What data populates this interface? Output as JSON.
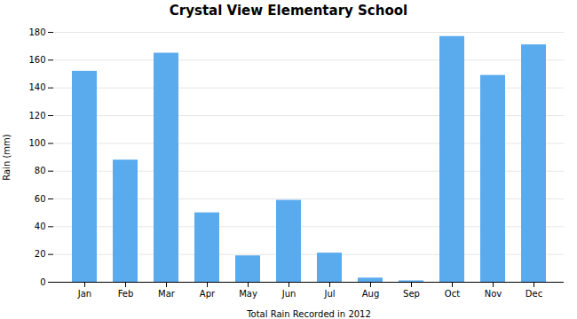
{
  "chart_data": {
    "type": "bar",
    "title": "Crystal View Elementary School",
    "xlabel": "Total Rain Recorded in 2012",
    "ylabel": "Rain (mm)",
    "categories": [
      "Jan",
      "Feb",
      "Mar",
      "Apr",
      "May",
      "Jun",
      "Jul",
      "Aug",
      "Sep",
      "Oct",
      "Nov",
      "Dec"
    ],
    "values": [
      152,
      88,
      165,
      50,
      19,
      59,
      21,
      3,
      1,
      177,
      149,
      171
    ],
    "color": "#5aabee",
    "ylim": [
      0,
      180
    ],
    "yticks": [
      0,
      20,
      40,
      60,
      80,
      100,
      120,
      140,
      160,
      180
    ],
    "grid": true
  }
}
